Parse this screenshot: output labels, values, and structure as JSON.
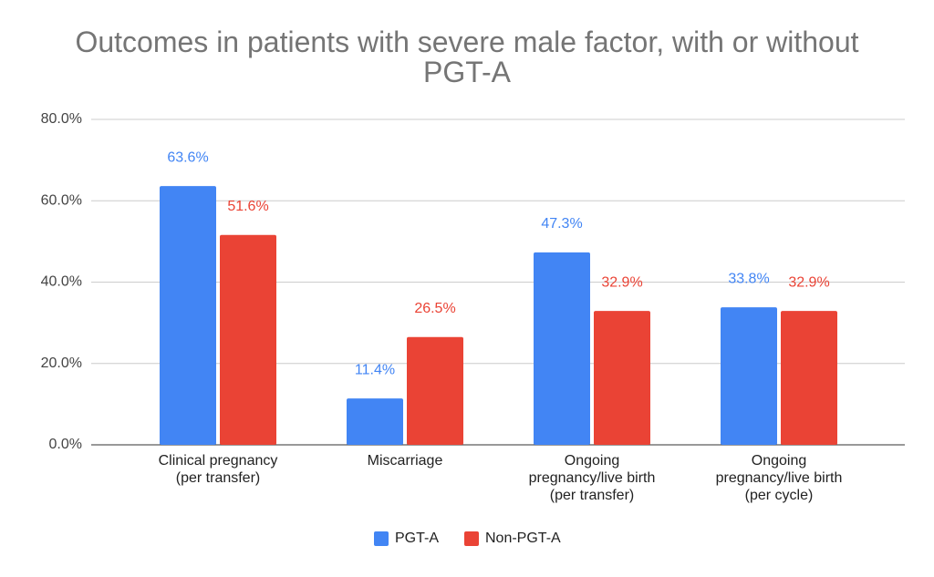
{
  "chart_data": {
    "type": "bar",
    "title": "Outcomes in patients with severe male factor, with or without\nPGT-A",
    "categories": [
      "Clinical pregnancy\n(per transfer)",
      "Miscarriage",
      "Ongoing\npregnancy/live birth\n(per transfer)",
      "Ongoing\npregnancy/live birth\n(per cycle)"
    ],
    "series": [
      {
        "name": "PGT-A",
        "color": "#4285f4",
        "values": [
          63.6,
          11.4,
          47.3,
          33.8
        ],
        "value_labels": [
          "63.6%",
          "11.4%",
          "47.3%",
          "33.8%"
        ]
      },
      {
        "name": "Non-PGT-A",
        "color": "#ea4335",
        "values": [
          51.6,
          26.5,
          32.9,
          32.9
        ],
        "value_labels": [
          "51.6%",
          "26.5%",
          "32.9%",
          "32.9%"
        ]
      }
    ],
    "ylim": [
      0,
      80
    ],
    "yticks": [
      {
        "value": 0,
        "label": "0.0%"
      },
      {
        "value": 20,
        "label": "20.0%"
      },
      {
        "value": 40,
        "label": "40.0%"
      },
      {
        "value": 60,
        "label": "60.0%"
      },
      {
        "value": 80,
        "label": "80.0%"
      }
    ],
    "grid": true,
    "legend": "bottom"
  }
}
